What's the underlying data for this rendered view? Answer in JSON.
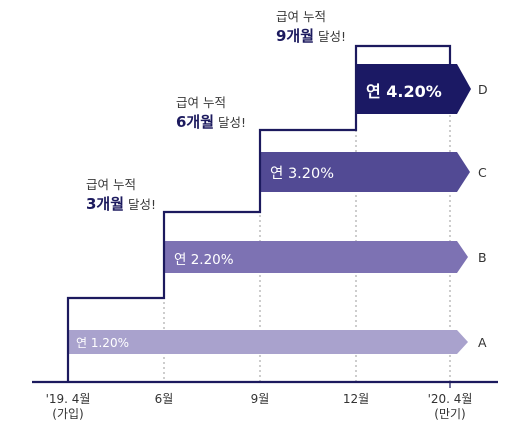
{
  "annotations": [
    {
      "prefix": "급여 누적",
      "months": "3개월",
      "suffix": "달성!"
    },
    {
      "prefix": "급여 누적",
      "months": "6개월",
      "suffix": "달성!"
    },
    {
      "prefix": "급여 누적",
      "months": "9개월",
      "suffix": "달성!"
    }
  ],
  "arrows": [
    {
      "rate": "연 1.20%",
      "label": "A",
      "color": "#a9a2cd"
    },
    {
      "rate": "연 2.20%",
      "label": "B",
      "color": "#7d72b3"
    },
    {
      "rate": "연 3.20%",
      "label": "C",
      "color": "#524a94"
    },
    {
      "rate": "연 4.20%",
      "label": "D",
      "color": "#1b1964"
    }
  ],
  "axis": {
    "ticks": [
      {
        "line1": "'19. 4월",
        "line2": "(가입)"
      },
      {
        "line1": "6월",
        "line2": ""
      },
      {
        "line1": "9월",
        "line2": ""
      },
      {
        "line1": "12월",
        "line2": ""
      },
      {
        "line1": "'20. 4월",
        "line2": "(만기)"
      }
    ]
  },
  "colors": {
    "step_line": "#1c1a5e",
    "dotted": "#9b9b9b"
  }
}
